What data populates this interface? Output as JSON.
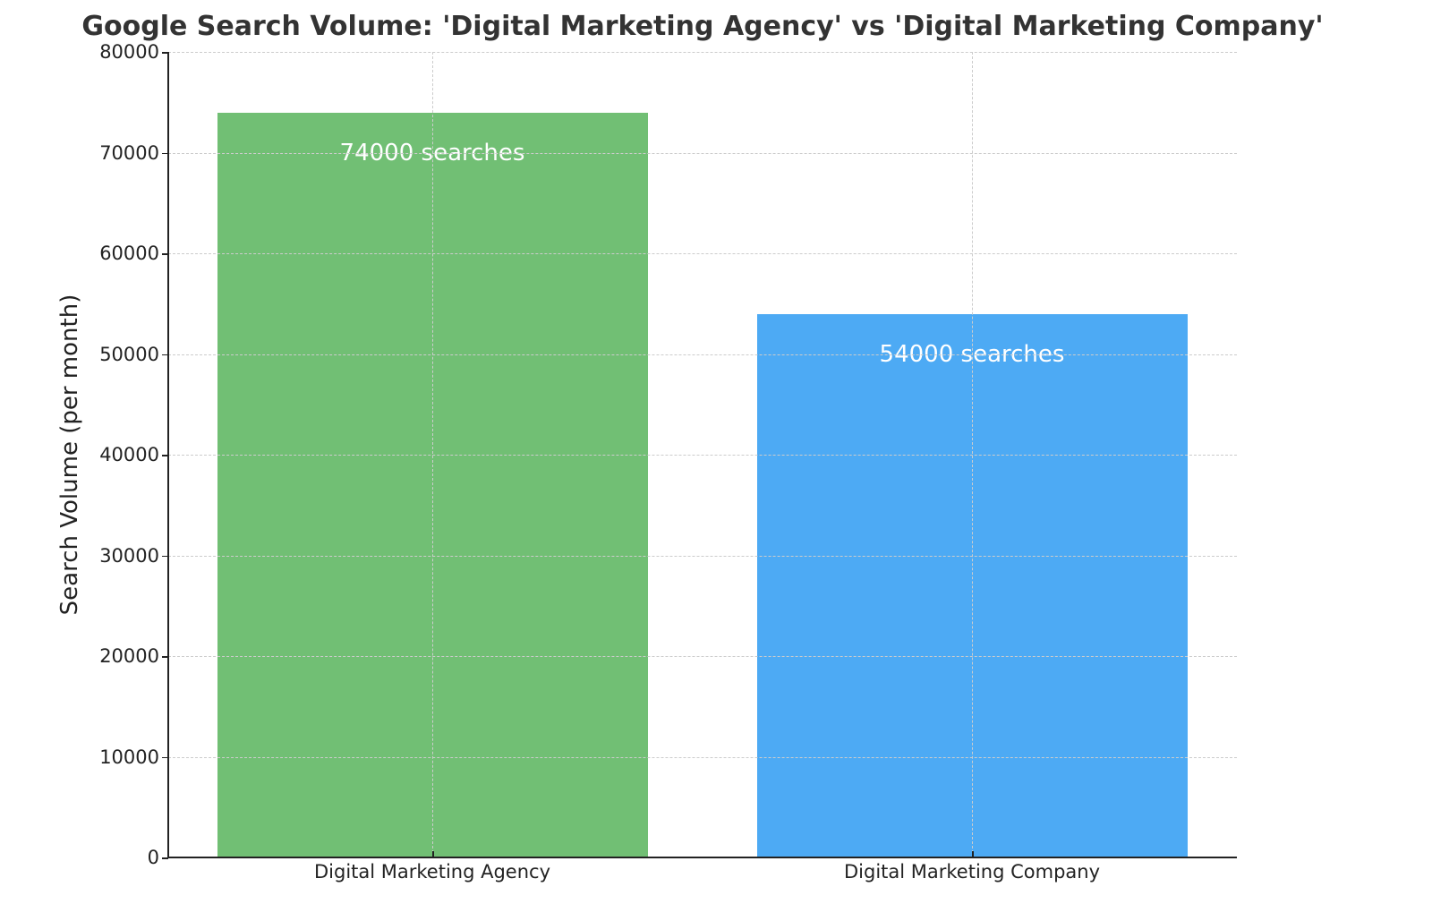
{
  "chart_data": {
    "type": "bar",
    "title": "Google Search Volume: 'Digital Marketing Agency' vs 'Digital Marketing Company'",
    "xlabel": "",
    "ylabel": "Search Volume (per month)",
    "categories": [
      "Digital Marketing Agency",
      "Digital Marketing Company"
    ],
    "values": [
      74000,
      54000
    ],
    "bar_labels": [
      "74000 searches",
      "54000 searches"
    ],
    "colors": [
      "#71bf74",
      "#4daaf4"
    ],
    "ylim": [
      0,
      80000
    ],
    "yticks": [
      0,
      10000,
      20000,
      30000,
      40000,
      50000,
      60000,
      70000,
      80000
    ],
    "ytick_labels": [
      "0",
      "10000",
      "20000",
      "30000",
      "40000",
      "50000",
      "60000",
      "70000",
      "80000"
    ],
    "grid": true,
    "grid_style": "dashed",
    "legend": null
  }
}
